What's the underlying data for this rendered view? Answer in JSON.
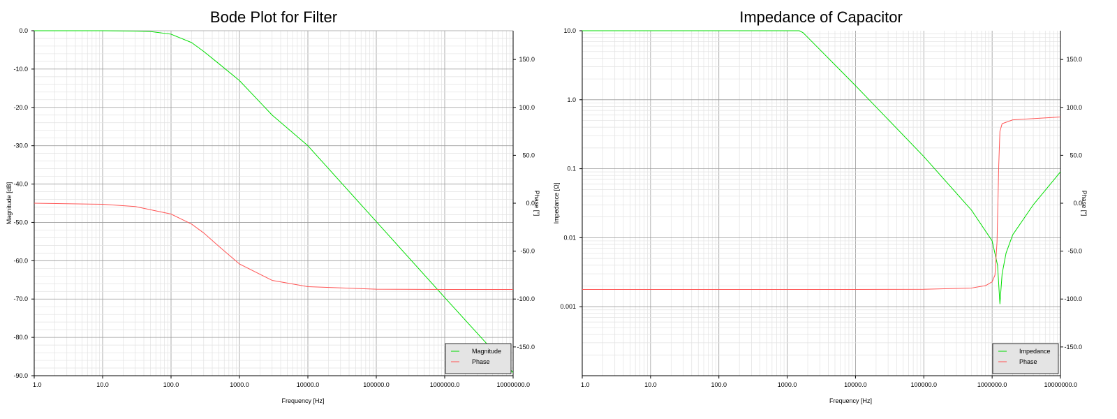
{
  "chart_data": [
    {
      "type": "line",
      "title": "Bode Plot for Filter",
      "xlabel": "Frequency [Hz]",
      "ylabel": "Magnitude [dB]",
      "y2label": "Phase [°]",
      "xscale": "log",
      "xlim": [
        1,
        10000000
      ],
      "ylim": [
        -90,
        0
      ],
      "y2lim": [
        -180,
        180
      ],
      "xticks": [
        "1.0",
        "10.0",
        "100.0",
        "1000.0",
        "10000.0",
        "100000.0",
        "1000000.0",
        "10000000.0"
      ],
      "yticks": [
        "0.0",
        "-10.0",
        "-20.0",
        "-30.0",
        "-40.0",
        "-50.0",
        "-60.0",
        "-70.0",
        "-80.0",
        "-90.0"
      ],
      "y2ticks": [
        "150.0",
        "100.0",
        "50.0",
        "0.0",
        "-50.0",
        "-100.0",
        "-150.0"
      ],
      "grid": true,
      "legend_position": "bottom-right",
      "series": [
        {
          "name": "Magnitude",
          "axis": "left",
          "color": "#00dd00",
          "x": [
            1,
            10,
            30,
            50,
            100,
            200,
            300,
            500,
            1000,
            3000,
            10000,
            100000,
            1000000,
            10000000
          ],
          "y": [
            0,
            0,
            -0.1,
            -0.2,
            -0.9,
            -3.1,
            -5.4,
            -8.6,
            -13.0,
            -22.0,
            -30.0,
            -49.8,
            -69.6,
            -89.2
          ]
        },
        {
          "name": "Phase",
          "axis": "right",
          "color": "#ff5555",
          "x": [
            1,
            10,
            30,
            100,
            200,
            300,
            500,
            1000,
            3000,
            10000,
            100000,
            1000000,
            10000000
          ],
          "y": [
            0,
            -1.1,
            -3.5,
            -11.3,
            -21.8,
            -31.0,
            -45.0,
            -63.4,
            -80.5,
            -87.1,
            -89.7,
            -90.0,
            -90.0
          ]
        }
      ]
    },
    {
      "type": "line",
      "title": "Impedance of Capacitor",
      "xlabel": "Frequency [Hz]",
      "ylabel": "Impedance [Ω]",
      "y2label": "Phase [°]",
      "xscale": "log",
      "yscale": "log",
      "xlim": [
        1,
        10000000
      ],
      "ylim": [
        0.0001,
        10
      ],
      "y2lim": [
        -180,
        180
      ],
      "xticks": [
        "1.0",
        "10.0",
        "100.0",
        "1000.0",
        "10000.0",
        "100000.0",
        "1000000.0",
        "10000000.0"
      ],
      "yticks": [
        "10.0",
        "1.0",
        "0.1",
        "0.01",
        "0.001"
      ],
      "y2ticks": [
        "150.0",
        "100.0",
        "50.0",
        "0.0",
        "-50.0",
        "-100.0",
        "-150.0"
      ],
      "grid": true,
      "legend_position": "bottom-right",
      "series": [
        {
          "name": "Impedance",
          "axis": "left",
          "color": "#00dd00",
          "x": [
            1,
            100,
            1000,
            1500,
            1700,
            2000,
            5000,
            10000,
            100000,
            500000,
            1000000,
            1200000,
            1300000,
            1400000,
            1600000,
            2000000,
            4000000,
            10000000
          ],
          "y": [
            10,
            10,
            10,
            10,
            9.4,
            8.0,
            3.2,
            1.6,
            0.15,
            0.025,
            0.009,
            0.004,
            0.0011,
            0.003,
            0.006,
            0.011,
            0.03,
            0.09
          ]
        },
        {
          "name": "Phase",
          "axis": "right",
          "color": "#ff5555",
          "x": [
            1,
            10000,
            100000,
            500000,
            800000,
            1000000,
            1100000,
            1180000,
            1250000,
            1300000,
            1400000,
            2000000,
            10000000
          ],
          "y": [
            -90,
            -90,
            -89.8,
            -88.5,
            -86,
            -82,
            -75,
            -40,
            40,
            75,
            83,
            87,
            90
          ]
        }
      ]
    }
  ]
}
